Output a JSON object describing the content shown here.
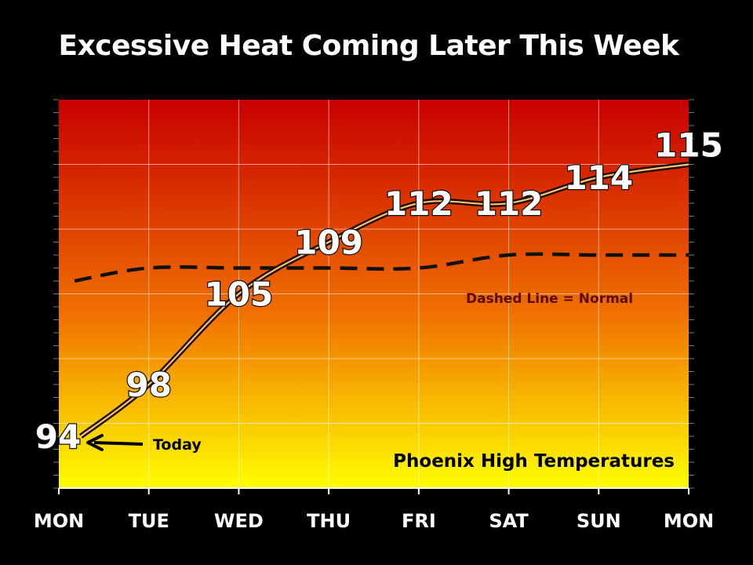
{
  "chart_data": {
    "type": "line",
    "title": "Excessive Heat Coming Later This Week",
    "subtitle": "Phoenix High Temperatures",
    "categories": [
      "MON",
      "TUE",
      "WED",
      "THU",
      "FRI",
      "SAT",
      "SUN",
      "MON"
    ],
    "series": [
      {
        "name": "",
        "values": [
          94,
          98,
          105,
          109,
          112,
          112,
          114,
          115
        ]
      },
      {
        "name": "Normal",
        "style": "dashed",
        "values": [
          106,
          107,
          107,
          107,
          107,
          108,
          108,
          108
        ]
      }
    ],
    "ylim": [
      90,
      120
    ],
    "grid": true,
    "annotations": {
      "normal_note": "Dashed Line = Normal",
      "today_label": "Today"
    },
    "colors": {
      "background_top": "#c80000",
      "background_mid": "#f07000",
      "background_bottom": "#ffff00",
      "line": "#3a1a08",
      "normal_line": "#111111",
      "page": "#000000"
    }
  }
}
